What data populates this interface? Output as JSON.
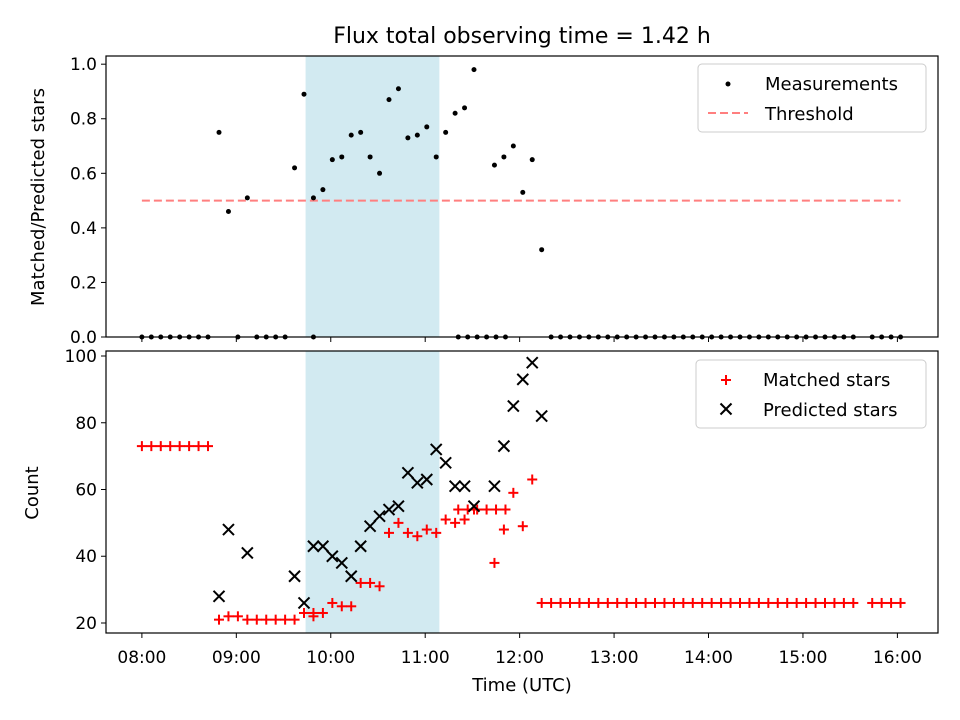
{
  "figure_title": "Flux total observing time = 1.42 h",
  "colors": {
    "measurement": "#000000",
    "threshold": "#ff7f7f",
    "matched": "#ff0000",
    "predicted": "#000000",
    "highlight": "#add8e6"
  },
  "chart_data": [
    {
      "type": "scatter",
      "title": "Flux total observing time = 1.42 h",
      "xlabel": "",
      "ylabel": "Matched/Predicted stars",
      "xlim_hours": [
        7.62,
        16.43
      ],
      "ylim": [
        0,
        1.03
      ],
      "yticks": [
        0.0,
        0.2,
        0.4,
        0.6,
        0.8,
        1.0
      ],
      "ytick_labels": [
        "0.0",
        "0.2",
        "0.4",
        "0.6",
        "0.8",
        "1.0"
      ],
      "highlight_span": [
        "09:44",
        "11:09"
      ],
      "legend": {
        "position": "top-right",
        "entries": [
          "Measurements",
          "Threshold"
        ]
      },
      "threshold": {
        "name": "Threshold",
        "y": 0.5,
        "x_range": [
          "08:00",
          "16:02"
        ],
        "style": "dashed"
      },
      "series": [
        {
          "name": "Measurements",
          "points": [
            [
              "08:00",
              0
            ],
            [
              "08:06",
              0
            ],
            [
              "08:12",
              0
            ],
            [
              "08:18",
              0
            ],
            [
              "08:24",
              0
            ],
            [
              "08:30",
              0
            ],
            [
              "08:36",
              0
            ],
            [
              "08:42",
              0
            ],
            [
              "08:49",
              0.75
            ],
            [
              "08:55",
              0.46
            ],
            [
              "09:01",
              0
            ],
            [
              "09:07",
              0.51
            ],
            [
              "09:13",
              0
            ],
            [
              "09:19",
              0
            ],
            [
              "09:25",
              0
            ],
            [
              "09:31",
              0
            ],
            [
              "09:37",
              0.62
            ],
            [
              "09:43",
              0.89
            ],
            [
              "09:49",
              0
            ],
            [
              "09:49",
              0.51
            ],
            [
              "09:55",
              0.54
            ],
            [
              "10:01",
              0.65
            ],
            [
              "10:07",
              0.66
            ],
            [
              "10:13",
              0.74
            ],
            [
              "10:19",
              0.75
            ],
            [
              "10:25",
              0.66
            ],
            [
              "10:31",
              0.6
            ],
            [
              "10:37",
              0.87
            ],
            [
              "10:43",
              0.91
            ],
            [
              "10:49",
              0.73
            ],
            [
              "10:55",
              0.74
            ],
            [
              "11:01",
              0.77
            ],
            [
              "11:07",
              0.66
            ],
            [
              "11:13",
              0.75
            ],
            [
              "11:19",
              0.82
            ],
            [
              "11:25",
              0.84
            ],
            [
              "11:31",
              0.98
            ],
            [
              "11:21",
              0
            ],
            [
              "11:27",
              0
            ],
            [
              "11:33",
              0
            ],
            [
              "11:39",
              0
            ],
            [
              "11:45",
              0
            ],
            [
              "11:51",
              0
            ],
            [
              "11:44",
              0.63
            ],
            [
              "11:50",
              0.66
            ],
            [
              "11:56",
              0.7
            ],
            [
              "12:02",
              0.53
            ],
            [
              "12:08",
              0.65
            ],
            [
              "12:14",
              0.32
            ],
            [
              "12:20",
              0
            ],
            [
              "12:26",
              0
            ],
            [
              "12:32",
              0
            ],
            [
              "12:38",
              0
            ],
            [
              "12:44",
              0
            ],
            [
              "12:50",
              0
            ],
            [
              "12:56",
              0
            ],
            [
              "13:02",
              0
            ],
            [
              "13:08",
              0
            ],
            [
              "13:14",
              0
            ],
            [
              "13:20",
              0
            ],
            [
              "13:26",
              0
            ],
            [
              "13:32",
              0
            ],
            [
              "13:38",
              0
            ],
            [
              "13:44",
              0
            ],
            [
              "13:50",
              0
            ],
            [
              "13:56",
              0
            ],
            [
              "14:02",
              0
            ],
            [
              "14:08",
              0
            ],
            [
              "14:14",
              0
            ],
            [
              "14:20",
              0
            ],
            [
              "14:26",
              0
            ],
            [
              "14:32",
              0
            ],
            [
              "14:38",
              0
            ],
            [
              "14:44",
              0
            ],
            [
              "14:50",
              0
            ],
            [
              "14:56",
              0
            ],
            [
              "15:02",
              0
            ],
            [
              "15:08",
              0
            ],
            [
              "15:14",
              0
            ],
            [
              "15:20",
              0
            ],
            [
              "15:26",
              0
            ],
            [
              "15:32",
              0
            ],
            [
              "15:44",
              0
            ],
            [
              "15:50",
              0
            ],
            [
              "15:56",
              0
            ],
            [
              "16:02",
              0
            ]
          ]
        }
      ]
    },
    {
      "type": "scatter",
      "title": "",
      "xlabel": "Time (UTC)",
      "ylabel": "Count",
      "xlim_hours": [
        7.62,
        16.43
      ],
      "ylim": [
        17,
        101.5
      ],
      "xticks": [
        "08:00",
        "09:00",
        "10:00",
        "11:00",
        "12:00",
        "13:00",
        "14:00",
        "15:00",
        "16:00"
      ],
      "yticks": [
        20,
        40,
        60,
        80,
        100
      ],
      "ytick_labels": [
        "20",
        "40",
        "60",
        "80",
        "100"
      ],
      "highlight_span": [
        "09:44",
        "11:09"
      ],
      "legend": {
        "position": "top-right",
        "entries": [
          "Matched stars",
          "Predicted stars"
        ]
      },
      "series": [
        {
          "name": "Matched stars",
          "marker": "plus",
          "points": [
            [
              "08:00",
              73
            ],
            [
              "08:06",
              73
            ],
            [
              "08:12",
              73
            ],
            [
              "08:18",
              73
            ],
            [
              "08:24",
              73
            ],
            [
              "08:30",
              73
            ],
            [
              "08:36",
              73
            ],
            [
              "08:42",
              73
            ],
            [
              "08:49",
              21
            ],
            [
              "08:55",
              22
            ],
            [
              "09:01",
              22
            ],
            [
              "09:07",
              21
            ],
            [
              "09:13",
              21
            ],
            [
              "09:19",
              21
            ],
            [
              "09:25",
              21
            ],
            [
              "09:31",
              21
            ],
            [
              "09:37",
              21
            ],
            [
              "09:43",
              23
            ],
            [
              "09:49",
              23
            ],
            [
              "09:49",
              22
            ],
            [
              "09:55",
              23
            ],
            [
              "10:01",
              26
            ],
            [
              "10:07",
              25
            ],
            [
              "10:13",
              25
            ],
            [
              "10:19",
              32
            ],
            [
              "10:25",
              32
            ],
            [
              "10:31",
              31
            ],
            [
              "10:37",
              47
            ],
            [
              "10:43",
              50
            ],
            [
              "10:49",
              47
            ],
            [
              "10:55",
              46
            ],
            [
              "11:01",
              48
            ],
            [
              "11:07",
              47
            ],
            [
              "11:13",
              51
            ],
            [
              "11:19",
              50
            ],
            [
              "11:25",
              51
            ],
            [
              "11:31",
              54
            ],
            [
              "11:21",
              54
            ],
            [
              "11:27",
              54
            ],
            [
              "11:33",
              54
            ],
            [
              "11:39",
              54
            ],
            [
              "11:45",
              54
            ],
            [
              "11:51",
              54
            ],
            [
              "11:44",
              38
            ],
            [
              "11:50",
              48
            ],
            [
              "11:56",
              59
            ],
            [
              "12:02",
              49
            ],
            [
              "12:08",
              63
            ],
            [
              "12:14",
              26
            ],
            [
              "12:20",
              26
            ],
            [
              "12:26",
              26
            ],
            [
              "12:32",
              26
            ],
            [
              "12:38",
              26
            ],
            [
              "12:44",
              26
            ],
            [
              "12:50",
              26
            ],
            [
              "12:56",
              26
            ],
            [
              "13:02",
              26
            ],
            [
              "13:08",
              26
            ],
            [
              "13:14",
              26
            ],
            [
              "13:20",
              26
            ],
            [
              "13:26",
              26
            ],
            [
              "13:32",
              26
            ],
            [
              "13:38",
              26
            ],
            [
              "13:44",
              26
            ],
            [
              "13:50",
              26
            ],
            [
              "13:56",
              26
            ],
            [
              "14:02",
              26
            ],
            [
              "14:08",
              26
            ],
            [
              "14:14",
              26
            ],
            [
              "14:20",
              26
            ],
            [
              "14:26",
              26
            ],
            [
              "14:32",
              26
            ],
            [
              "14:38",
              26
            ],
            [
              "14:44",
              26
            ],
            [
              "14:50",
              26
            ],
            [
              "14:56",
              26
            ],
            [
              "15:02",
              26
            ],
            [
              "15:08",
              26
            ],
            [
              "15:14",
              26
            ],
            [
              "15:20",
              26
            ],
            [
              "15:26",
              26
            ],
            [
              "15:32",
              26
            ],
            [
              "15:44",
              26
            ],
            [
              "15:50",
              26
            ],
            [
              "15:56",
              26
            ],
            [
              "16:02",
              26
            ]
          ]
        },
        {
          "name": "Predicted stars",
          "marker": "x",
          "points": [
            [
              "08:49",
              28
            ],
            [
              "08:55",
              48
            ],
            [
              "09:07",
              41
            ],
            [
              "09:37",
              34
            ],
            [
              "09:43",
              26
            ],
            [
              "09:49",
              43
            ],
            [
              "09:55",
              43
            ],
            [
              "10:01",
              40
            ],
            [
              "10:07",
              38
            ],
            [
              "10:13",
              34
            ],
            [
              "10:19",
              43
            ],
            [
              "10:25",
              49
            ],
            [
              "10:31",
              52
            ],
            [
              "10:37",
              54
            ],
            [
              "10:43",
              55
            ],
            [
              "10:49",
              65
            ],
            [
              "10:55",
              62
            ],
            [
              "11:01",
              63
            ],
            [
              "11:07",
              72
            ],
            [
              "11:13",
              68
            ],
            [
              "11:19",
              61
            ],
            [
              "11:25",
              61
            ],
            [
              "11:31",
              55
            ],
            [
              "11:44",
              61
            ],
            [
              "11:50",
              73
            ],
            [
              "11:56",
              85
            ],
            [
              "12:02",
              93
            ],
            [
              "12:08",
              98
            ],
            [
              "12:14",
              82
            ]
          ]
        }
      ]
    }
  ]
}
